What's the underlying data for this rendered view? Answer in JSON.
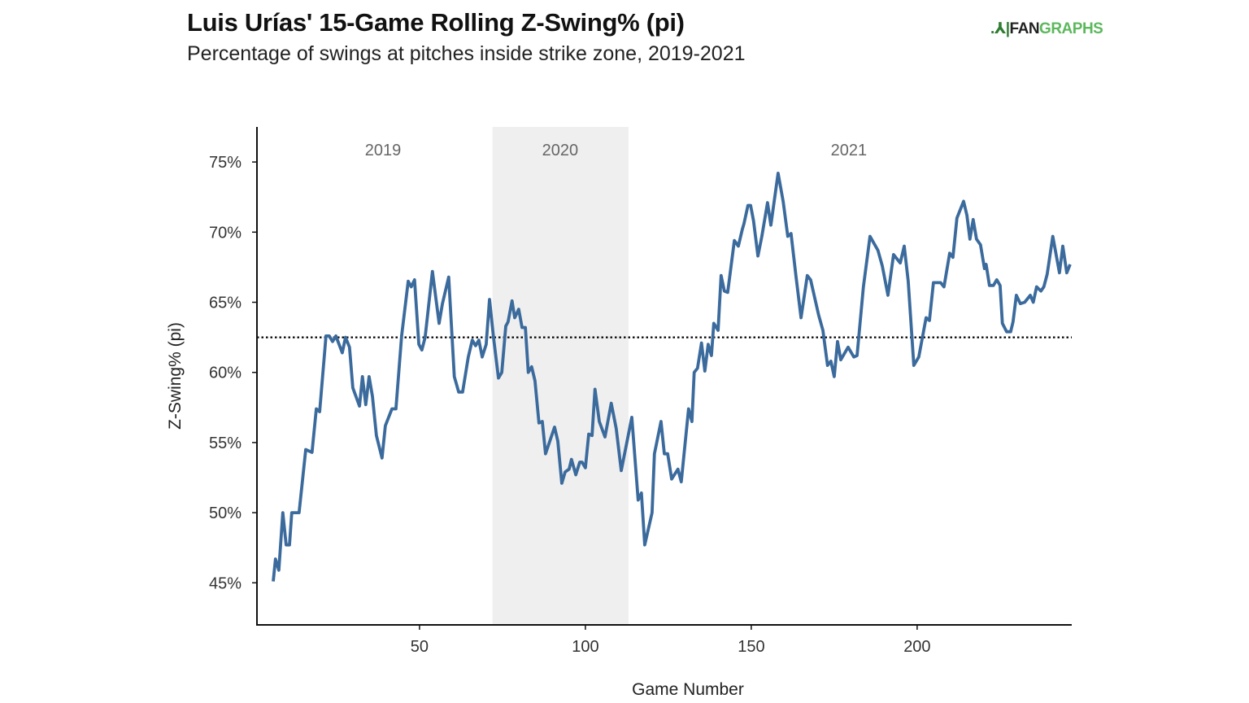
{
  "header": {
    "title": "Luis Urías' 15-Game Rolling Z-Swing% (pi)",
    "subtitle": "Percentage of swings at pitches inside strike zone, 2019-2021",
    "logo_text": "FANGRAPHS"
  },
  "chart_data": {
    "type": "line",
    "title": "Luis Urías' 15-Game Rolling Z-Swing% (pi)",
    "subtitle": "Percentage of swings at pitches inside strike zone, 2019-2021",
    "xlabel": "Game Number",
    "ylabel": "Z-Swing% (pi)",
    "xlim": [
      1,
      246.6
    ],
    "ylim": [
      42.0,
      77.5
    ],
    "xticks": [
      50,
      100,
      150,
      200
    ],
    "yticks": [
      45,
      50,
      55,
      60,
      65,
      70,
      75
    ],
    "ytick_labels": [
      "45%",
      "50%",
      "55%",
      "60%",
      "65%",
      "70%",
      "75%"
    ],
    "grid": false,
    "line_color": "#3b6a9c",
    "reference_line": {
      "value": 62.5,
      "style": "dotted",
      "color": "#000000"
    },
    "season_bands": [
      {
        "label": "2019",
        "label_at": 39,
        "shaded": false
      },
      {
        "label": "2020",
        "label_at": 92.4,
        "range": [
          72,
          113
        ],
        "shaded": true,
        "color": "#efefef"
      },
      {
        "label": "2021",
        "label_at": 179.4,
        "shaded": false
      }
    ],
    "series": [
      {
        "points": [
          [
            5.9,
            45.1
          ],
          [
            6.6,
            46.7
          ],
          [
            7.6,
            45.9
          ],
          [
            8.8,
            50.0
          ],
          [
            9.8,
            47.7
          ],
          [
            10.8,
            47.7
          ],
          [
            11.5,
            50.0
          ],
          [
            13.7,
            50.0
          ],
          [
            15.7,
            54.5
          ],
          [
            17.6,
            54.3
          ],
          [
            18.9,
            57.4
          ],
          [
            19.9,
            57.2
          ],
          [
            21.8,
            62.6
          ],
          [
            22.8,
            62.6
          ],
          [
            23.8,
            62.2
          ],
          [
            24.8,
            62.6
          ],
          [
            26.7,
            61.4
          ],
          [
            27.7,
            62.5
          ],
          [
            28.9,
            61.8
          ],
          [
            29.9,
            58.9
          ],
          [
            31.9,
            57.6
          ],
          [
            32.8,
            59.7
          ],
          [
            33.8,
            57.7
          ],
          [
            34.8,
            59.7
          ],
          [
            35.8,
            58.3
          ],
          [
            37.0,
            55.5
          ],
          [
            38.7,
            53.9
          ],
          [
            39.7,
            56.2
          ],
          [
            41.7,
            57.4
          ],
          [
            42.9,
            57.4
          ],
          [
            44.6,
            62.6
          ],
          [
            46.6,
            66.5
          ],
          [
            47.5,
            66.1
          ],
          [
            48.5,
            66.6
          ],
          [
            49.8,
            62.0
          ],
          [
            50.7,
            61.6
          ],
          [
            51.7,
            62.5
          ],
          [
            53.9,
            67.2
          ],
          [
            55.9,
            63.5
          ],
          [
            56.9,
            64.9
          ],
          [
            58.8,
            66.8
          ],
          [
            60.5,
            59.7
          ],
          [
            61.8,
            58.6
          ],
          [
            63.0,
            58.6
          ],
          [
            64.7,
            61.1
          ],
          [
            65.9,
            62.3
          ],
          [
            66.9,
            61.9
          ],
          [
            67.9,
            62.3
          ],
          [
            68.9,
            61.1
          ],
          [
            70.1,
            62.0
          ],
          [
            71.1,
            65.2
          ],
          [
            72.3,
            62.5
          ],
          [
            73.8,
            59.6
          ],
          [
            74.8,
            60.0
          ],
          [
            76.0,
            63.3
          ],
          [
            76.7,
            63.6
          ],
          [
            77.9,
            65.1
          ],
          [
            78.7,
            63.9
          ],
          [
            79.9,
            64.5
          ],
          [
            80.9,
            63.2
          ],
          [
            81.9,
            63.2
          ],
          [
            82.8,
            60.0
          ],
          [
            83.8,
            60.4
          ],
          [
            84.8,
            59.4
          ],
          [
            86.0,
            56.4
          ],
          [
            87.0,
            56.5
          ],
          [
            88.0,
            54.2
          ],
          [
            90.7,
            56.1
          ],
          [
            91.7,
            55.1
          ],
          [
            92.9,
            52.1
          ],
          [
            93.9,
            52.9
          ],
          [
            95.1,
            53.1
          ],
          [
            95.8,
            53.8
          ],
          [
            97.1,
            52.7
          ],
          [
            98.3,
            53.6
          ],
          [
            99.0,
            53.6
          ],
          [
            100.0,
            53.2
          ],
          [
            101.0,
            55.6
          ],
          [
            102.0,
            55.5
          ],
          [
            102.9,
            58.8
          ],
          [
            104.2,
            56.5
          ],
          [
            105.9,
            55.4
          ],
          [
            107.8,
            57.8
          ],
          [
            109.3,
            56.0
          ],
          [
            110.8,
            53.0
          ],
          [
            114.0,
            56.8
          ],
          [
            115.9,
            50.9
          ],
          [
            116.9,
            51.4
          ],
          [
            117.9,
            47.7
          ],
          [
            120.1,
            50.0
          ],
          [
            120.8,
            54.2
          ],
          [
            122.8,
            56.5
          ],
          [
            123.8,
            54.2
          ],
          [
            124.8,
            54.2
          ],
          [
            126.0,
            52.4
          ],
          [
            127.9,
            53.1
          ],
          [
            128.9,
            52.2
          ],
          [
            131.1,
            57.4
          ],
          [
            132.1,
            56.5
          ],
          [
            132.8,
            60.0
          ],
          [
            133.8,
            60.3
          ],
          [
            135.0,
            62.1
          ],
          [
            136.0,
            60.1
          ],
          [
            137.0,
            62.0
          ],
          [
            138.0,
            61.2
          ],
          [
            138.7,
            63.5
          ],
          [
            140.0,
            63.0
          ],
          [
            140.9,
            66.9
          ],
          [
            141.9,
            65.8
          ],
          [
            142.9,
            65.7
          ],
          [
            144.9,
            69.4
          ],
          [
            146.1,
            69.0
          ],
          [
            147.3,
            70.2
          ],
          [
            147.8,
            70.6
          ],
          [
            149.0,
            71.9
          ],
          [
            149.8,
            71.9
          ],
          [
            150.7,
            70.8
          ],
          [
            152.0,
            68.3
          ],
          [
            153.2,
            69.7
          ],
          [
            154.9,
            72.1
          ],
          [
            155.9,
            70.5
          ],
          [
            158.1,
            74.2
          ],
          [
            159.6,
            72.2
          ],
          [
            161.0,
            69.7
          ],
          [
            162.0,
            69.9
          ],
          [
            163.5,
            66.8
          ],
          [
            165.0,
            63.9
          ],
          [
            166.9,
            66.9
          ],
          [
            167.9,
            66.6
          ],
          [
            170.3,
            64.1
          ],
          [
            171.6,
            63.0
          ],
          [
            173.0,
            60.5
          ],
          [
            174.0,
            60.8
          ],
          [
            175.0,
            59.7
          ],
          [
            176.0,
            62.2
          ],
          [
            177.0,
            60.9
          ],
          [
            179.2,
            61.8
          ],
          [
            180.9,
            61.1
          ],
          [
            181.9,
            61.2
          ],
          [
            183.8,
            66.1
          ],
          [
            185.8,
            69.7
          ],
          [
            188.2,
            68.7
          ],
          [
            189.5,
            67.6
          ],
          [
            191.2,
            65.5
          ],
          [
            192.9,
            68.4
          ],
          [
            194.9,
            67.8
          ],
          [
            196.1,
            69.0
          ],
          [
            197.3,
            66.5
          ],
          [
            199.0,
            60.5
          ],
          [
            200.5,
            61.1
          ],
          [
            202.7,
            63.9
          ],
          [
            203.7,
            63.7
          ],
          [
            204.9,
            66.4
          ],
          [
            207.1,
            66.4
          ],
          [
            208.1,
            66.1
          ],
          [
            209.8,
            68.5
          ],
          [
            210.8,
            68.2
          ],
          [
            212.0,
            71.0
          ],
          [
            214.0,
            72.2
          ],
          [
            215.0,
            71.2
          ],
          [
            215.9,
            69.5
          ],
          [
            216.9,
            70.9
          ],
          [
            217.9,
            69.5
          ],
          [
            219.1,
            69.1
          ],
          [
            220.3,
            67.4
          ],
          [
            220.8,
            67.7
          ],
          [
            221.8,
            66.2
          ],
          [
            223.0,
            66.2
          ],
          [
            224.0,
            66.6
          ],
          [
            225.0,
            66.2
          ],
          [
            225.7,
            63.5
          ],
          [
            227.0,
            62.9
          ],
          [
            228.2,
            62.9
          ],
          [
            228.9,
            63.6
          ],
          [
            229.9,
            65.5
          ],
          [
            231.1,
            64.9
          ],
          [
            232.4,
            65.0
          ],
          [
            234.1,
            65.5
          ],
          [
            235.0,
            65.0
          ],
          [
            236.0,
            66.1
          ],
          [
            237.3,
            65.8
          ],
          [
            238.2,
            66.1
          ],
          [
            239.2,
            67.0
          ],
          [
            240.9,
            69.7
          ],
          [
            242.9,
            67.1
          ],
          [
            243.9,
            69.0
          ],
          [
            245.1,
            67.1
          ],
          [
            246.1,
            67.7
          ]
        ]
      }
    ]
  }
}
